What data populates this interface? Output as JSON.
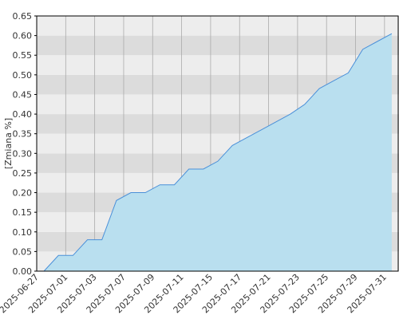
{
  "chart_data": {
    "type": "area",
    "y_label": "[Zmiana %]",
    "categories": [
      "2025-06-27",
      null,
      "2025-07-01",
      null,
      "2025-07-03",
      null,
      "2025-07-07",
      null,
      "2025-07-09",
      null,
      "2025-07-11",
      null,
      "2025-07-15",
      null,
      "2025-07-17",
      null,
      "2025-07-21",
      null,
      "2025-07-23",
      null,
      "2025-07-25",
      null,
      "2025-07-29",
      null,
      "2025-07-31"
    ],
    "values": [
      0.0,
      0.04,
      0.04,
      0.08,
      0.08,
      0.18,
      0.2,
      0.2,
      0.22,
      0.22,
      0.26,
      0.26,
      0.28,
      0.32,
      0.34,
      0.36,
      0.38,
      0.4,
      0.425,
      0.465,
      0.485,
      0.505,
      0.565,
      0.585,
      0.605
    ],
    "color": "#4a90d9",
    "fill": "#b9dfef",
    "ylim": [
      0,
      0.65
    ],
    "yticks": [
      {
        "value": 0,
        "label": "0.00"
      },
      {
        "value": 0.05,
        "label": "0.05"
      },
      {
        "value": 0.1,
        "label": "0.10"
      },
      {
        "value": 0.15,
        "label": "0.15"
      },
      {
        "value": 0.2,
        "label": "0.20"
      },
      {
        "value": 0.25,
        "label": "0.25"
      },
      {
        "value": 0.3,
        "label": "0.30"
      },
      {
        "value": 0.35,
        "label": "0.35"
      },
      {
        "value": 0.4,
        "label": "0.40"
      },
      {
        "value": 0.45,
        "label": "0.45"
      },
      {
        "value": 0.5,
        "label": "0.50"
      },
      {
        "value": 0.55,
        "label": "0.55"
      },
      {
        "value": 0.6,
        "label": "0.60"
      },
      {
        "value": 0.65,
        "label": "0.65"
      }
    ],
    "grid": true
  }
}
